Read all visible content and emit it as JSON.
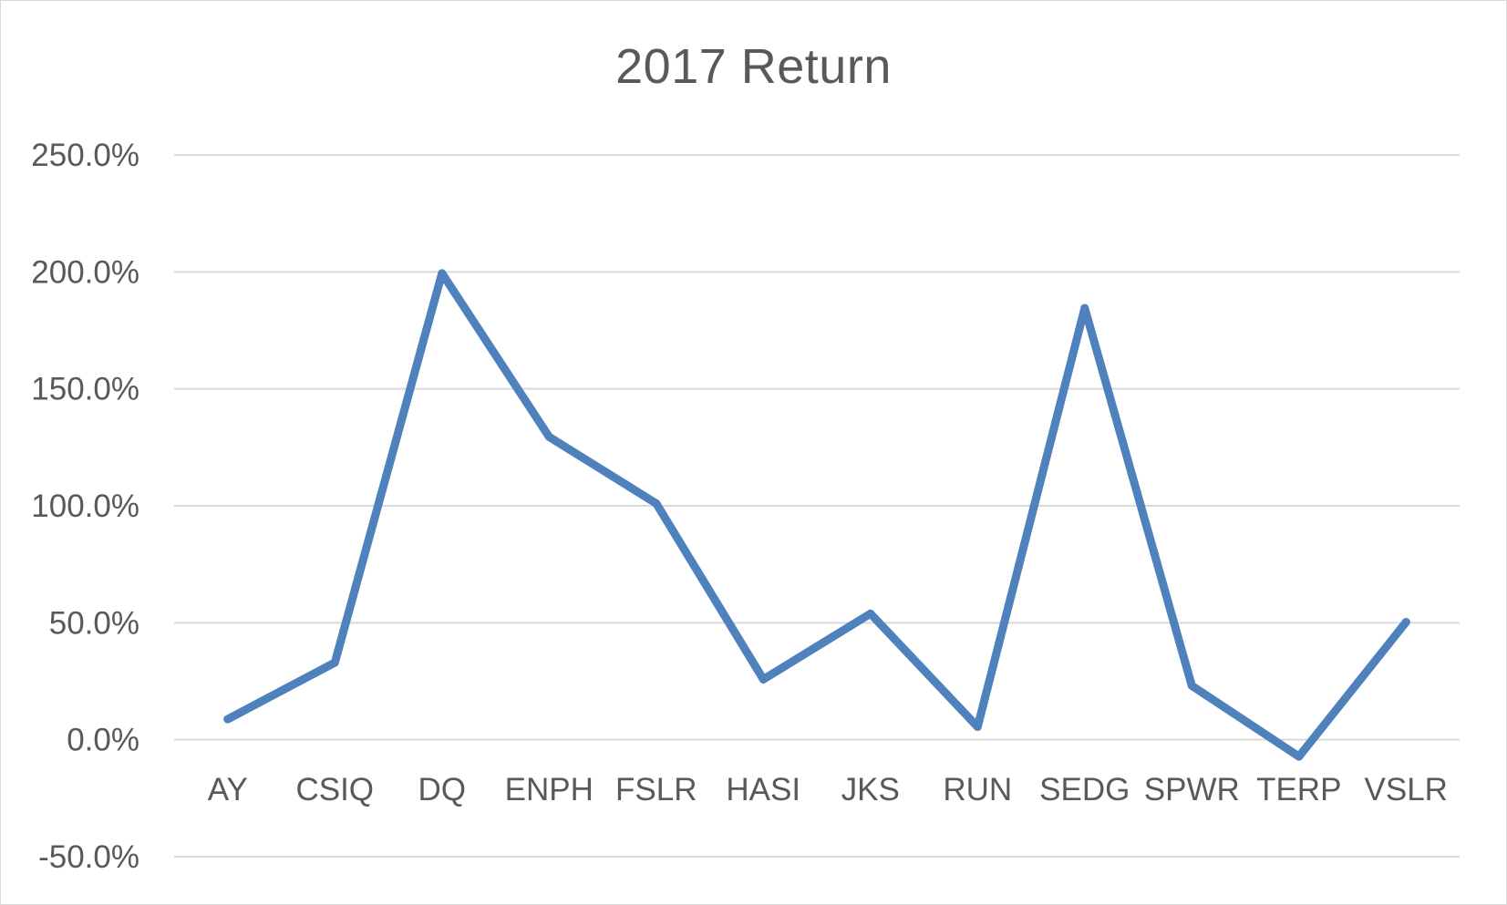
{
  "chart_data": {
    "type": "line",
    "title": "2017 Return",
    "xlabel": "",
    "ylabel": "",
    "categories": [
      "AY",
      "CSIQ",
      "DQ",
      "ENPH",
      "FSLR",
      "HASI",
      "JKS",
      "RUN",
      "SEDG",
      "SPWR",
      "TERP",
      "VSLR"
    ],
    "series": [
      {
        "values": [
          8.8,
          33.0,
          199.4,
          129.5,
          101.0,
          25.8,
          53.9,
          5.5,
          184.5,
          23.1,
          -7.2,
          50.3
        ]
      }
    ],
    "ylim": [
      -50,
      250
    ],
    "ytick_step": 50,
    "ytick_labels": [
      "-50.0%",
      "0.0%",
      "50.0%",
      "100.0%",
      "150.0%",
      "200.0%",
      "250.0%"
    ],
    "grid": true,
    "legend": "none",
    "line_color": "#4f81bd",
    "grid_color": "#d9d9d9",
    "text_color": "#595959"
  }
}
